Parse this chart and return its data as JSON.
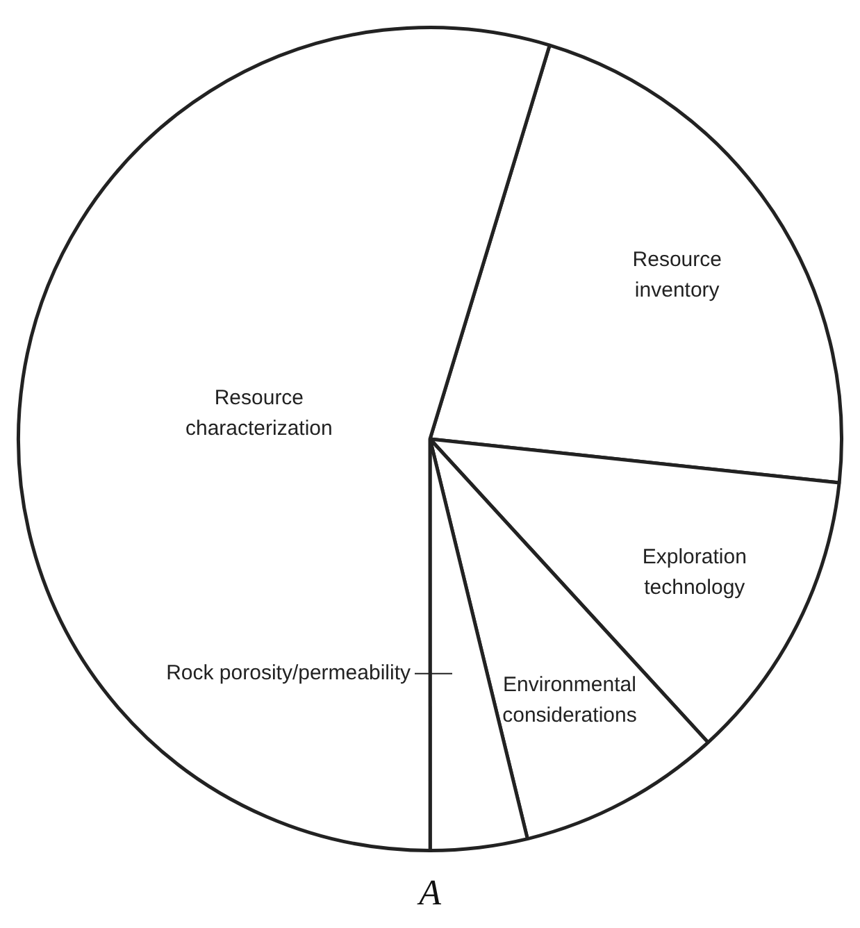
{
  "chart_data": {
    "type": "pie",
    "categories": [
      "Resource inventory",
      "Exploration technology",
      "Environmental considerations",
      "Rock porosity/permeability",
      "Resource characterization"
    ],
    "values": [
      22.0,
      11.5,
      8.0,
      3.8,
      54.7
    ],
    "colors": [
      "#ffffff",
      "#ffffff",
      "#ffffff",
      "#ffffff",
      "#ffffff"
    ],
    "annotations": [
      "A"
    ]
  }
}
